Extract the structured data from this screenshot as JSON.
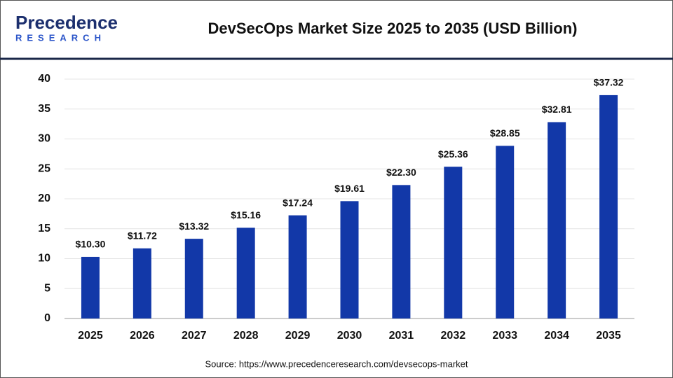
{
  "chart_data": {
    "type": "bar",
    "title": "DevSecOps Market Size 2025 to 2035 (USD Billion)",
    "logo_name": "Precedence",
    "logo_tagline": "RESEARCH",
    "source": "Source: https://www.precedenceresearch.com/devsecops-market",
    "categories": [
      "2025",
      "2026",
      "2027",
      "2028",
      "2029",
      "2030",
      "2031",
      "2032",
      "2033",
      "2034",
      "2035"
    ],
    "values": [
      10.3,
      11.72,
      13.32,
      15.16,
      17.24,
      19.61,
      22.3,
      25.36,
      28.85,
      32.81,
      37.32
    ],
    "value_labels": [
      "$10.30",
      "$11.72",
      "$13.32",
      "$15.16",
      "$17.24",
      "$19.61",
      "$22.30",
      "$25.36",
      "$28.85",
      "$32.81",
      "$37.32"
    ],
    "color": "#1238a8",
    "ylim": [
      0,
      40
    ],
    "yticks": [
      0,
      5,
      10,
      15,
      20,
      25,
      30,
      35,
      40
    ],
    "grid": true
  }
}
